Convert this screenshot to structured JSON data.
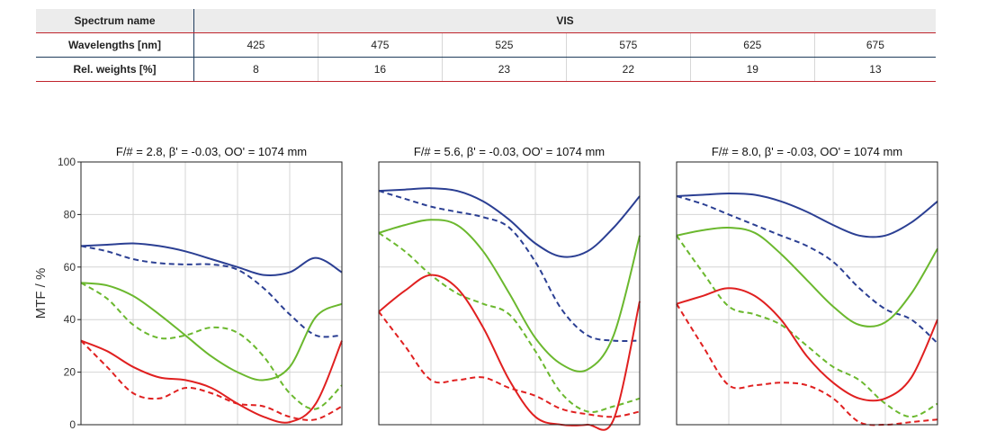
{
  "table": {
    "header_label": "Spectrum name",
    "spectrum_value": "VIS",
    "rows": [
      {
        "label": "Wavelengths [nm]",
        "values": [
          "425",
          "475",
          "525",
          "575",
          "625",
          "675"
        ]
      },
      {
        "label": "Rel. weights [%]",
        "values": [
          "8",
          "16",
          "23",
          "22",
          "19",
          "13"
        ]
      }
    ]
  },
  "colors": {
    "blue": "#2b3f93",
    "green": "#6bb82e",
    "red": "#e02020",
    "grid": "#d4d4d4",
    "axis": "#222222"
  },
  "chart_data": [
    {
      "type": "line",
      "title": "F/# = 2.8, β' = -0.03, OO' = 1074 mm",
      "ylabel": "MTF / %",
      "ylim": [
        0,
        100
      ],
      "yticks": [
        0,
        20,
        40,
        60,
        80,
        100
      ],
      "xlim": [
        0,
        100
      ],
      "grid": true,
      "series": [
        {
          "color": "blue",
          "style": "solid",
          "x": [
            0,
            10,
            20,
            30,
            40,
            50,
            60,
            70,
            80,
            90,
            100
          ],
          "y": [
            68,
            68.5,
            69,
            68,
            66,
            63,
            60,
            57,
            58,
            63.5,
            58
          ]
        },
        {
          "color": "blue",
          "style": "dashed",
          "x": [
            0,
            10,
            20,
            30,
            40,
            50,
            60,
            70,
            80,
            90,
            100
          ],
          "y": [
            68,
            66,
            63,
            61.5,
            61,
            61,
            59,
            52,
            42,
            34,
            34
          ]
        },
        {
          "color": "green",
          "style": "solid",
          "x": [
            0,
            10,
            20,
            30,
            40,
            50,
            60,
            70,
            80,
            90,
            100
          ],
          "y": [
            54,
            53,
            49,
            42,
            34,
            26,
            20,
            17,
            22,
            41,
            46
          ]
        },
        {
          "color": "green",
          "style": "dashed",
          "x": [
            0,
            10,
            20,
            30,
            40,
            50,
            60,
            70,
            80,
            90,
            100
          ],
          "y": [
            54,
            48,
            38,
            33,
            34,
            37,
            35,
            26,
            12,
            6,
            15
          ]
        },
        {
          "color": "red",
          "style": "solid",
          "x": [
            0,
            10,
            20,
            30,
            40,
            50,
            60,
            70,
            80,
            90,
            100
          ],
          "y": [
            32,
            28,
            22,
            18,
            17,
            14,
            8,
            3,
            1,
            8,
            32
          ]
        },
        {
          "color": "red",
          "style": "dashed",
          "x": [
            0,
            10,
            20,
            30,
            40,
            50,
            60,
            70,
            80,
            90,
            100
          ],
          "y": [
            32,
            22,
            12,
            10,
            14,
            12,
            8,
            7,
            3,
            2,
            7
          ]
        }
      ]
    },
    {
      "type": "line",
      "title": "F/# = 5.6, β' = -0.03, OO' = 1074 mm",
      "ylim": [
        0,
        100
      ],
      "xlim": [
        0,
        100
      ],
      "grid": true,
      "series": [
        {
          "color": "blue",
          "style": "solid",
          "x": [
            0,
            10,
            20,
            30,
            40,
            50,
            60,
            70,
            80,
            90,
            100
          ],
          "y": [
            89,
            89.5,
            90,
            89,
            85,
            78,
            69,
            64,
            66,
            75,
            87
          ]
        },
        {
          "color": "blue",
          "style": "dashed",
          "x": [
            0,
            10,
            20,
            30,
            40,
            50,
            60,
            70,
            80,
            90,
            100
          ],
          "y": [
            89,
            86,
            83,
            81,
            79,
            75,
            62,
            44,
            34,
            32,
            32
          ]
        },
        {
          "color": "green",
          "style": "solid",
          "x": [
            0,
            10,
            20,
            30,
            40,
            50,
            60,
            70,
            80,
            90,
            100
          ],
          "y": [
            73,
            76,
            78,
            76,
            66,
            50,
            33,
            23,
            21,
            34,
            72
          ]
        },
        {
          "color": "green",
          "style": "dashed",
          "x": [
            0,
            10,
            20,
            30,
            40,
            50,
            60,
            70,
            80,
            90,
            100
          ],
          "y": [
            73,
            66,
            57,
            50,
            46,
            42,
            28,
            12,
            5,
            7,
            10
          ]
        },
        {
          "color": "red",
          "style": "solid",
          "x": [
            0,
            10,
            20,
            30,
            40,
            50,
            60,
            70,
            80,
            90,
            100
          ],
          "y": [
            43,
            51,
            57,
            52,
            37,
            17,
            3,
            0,
            0,
            2,
            47
          ]
        },
        {
          "color": "red",
          "style": "dashed",
          "x": [
            0,
            10,
            20,
            30,
            40,
            50,
            60,
            70,
            80,
            90,
            100
          ],
          "y": [
            43,
            30,
            17,
            17,
            18,
            14,
            11,
            6,
            4,
            3,
            5
          ]
        }
      ]
    },
    {
      "type": "line",
      "title": "F/# = 8.0, β' = -0.03, OO' = 1074 mm",
      "ylim": [
        0,
        100
      ],
      "xlim": [
        0,
        100
      ],
      "grid": true,
      "series": [
        {
          "color": "blue",
          "style": "solid",
          "x": [
            0,
            10,
            20,
            30,
            40,
            50,
            60,
            70,
            80,
            90,
            100
          ],
          "y": [
            87,
            87.5,
            88,
            87.5,
            85,
            81,
            76,
            72,
            72,
            77,
            85
          ]
        },
        {
          "color": "blue",
          "style": "dashed",
          "x": [
            0,
            10,
            20,
            30,
            40,
            50,
            60,
            70,
            80,
            90,
            100
          ],
          "y": [
            87,
            84,
            80,
            76,
            72,
            68,
            62,
            52,
            44,
            40,
            31
          ]
        },
        {
          "color": "green",
          "style": "solid",
          "x": [
            0,
            10,
            20,
            30,
            40,
            50,
            60,
            70,
            80,
            90,
            100
          ],
          "y": [
            72,
            74,
            75,
            73,
            65,
            55,
            45,
            38,
            39,
            50,
            67
          ]
        },
        {
          "color": "green",
          "style": "dashed",
          "x": [
            0,
            10,
            20,
            30,
            40,
            50,
            60,
            70,
            80,
            90,
            100
          ],
          "y": [
            72,
            58,
            45,
            42,
            38,
            30,
            22,
            17,
            8,
            3,
            8
          ]
        },
        {
          "color": "red",
          "style": "solid",
          "x": [
            0,
            10,
            20,
            30,
            40,
            50,
            60,
            70,
            80,
            90,
            100
          ],
          "y": [
            46,
            49,
            52,
            49,
            40,
            26,
            16,
            10,
            10,
            18,
            40
          ]
        },
        {
          "color": "red",
          "style": "dashed",
          "x": [
            0,
            10,
            20,
            30,
            40,
            50,
            60,
            70,
            80,
            90,
            100
          ],
          "y": [
            46,
            30,
            15,
            15,
            16,
            15,
            10,
            1,
            0,
            1,
            2
          ]
        }
      ]
    }
  ]
}
